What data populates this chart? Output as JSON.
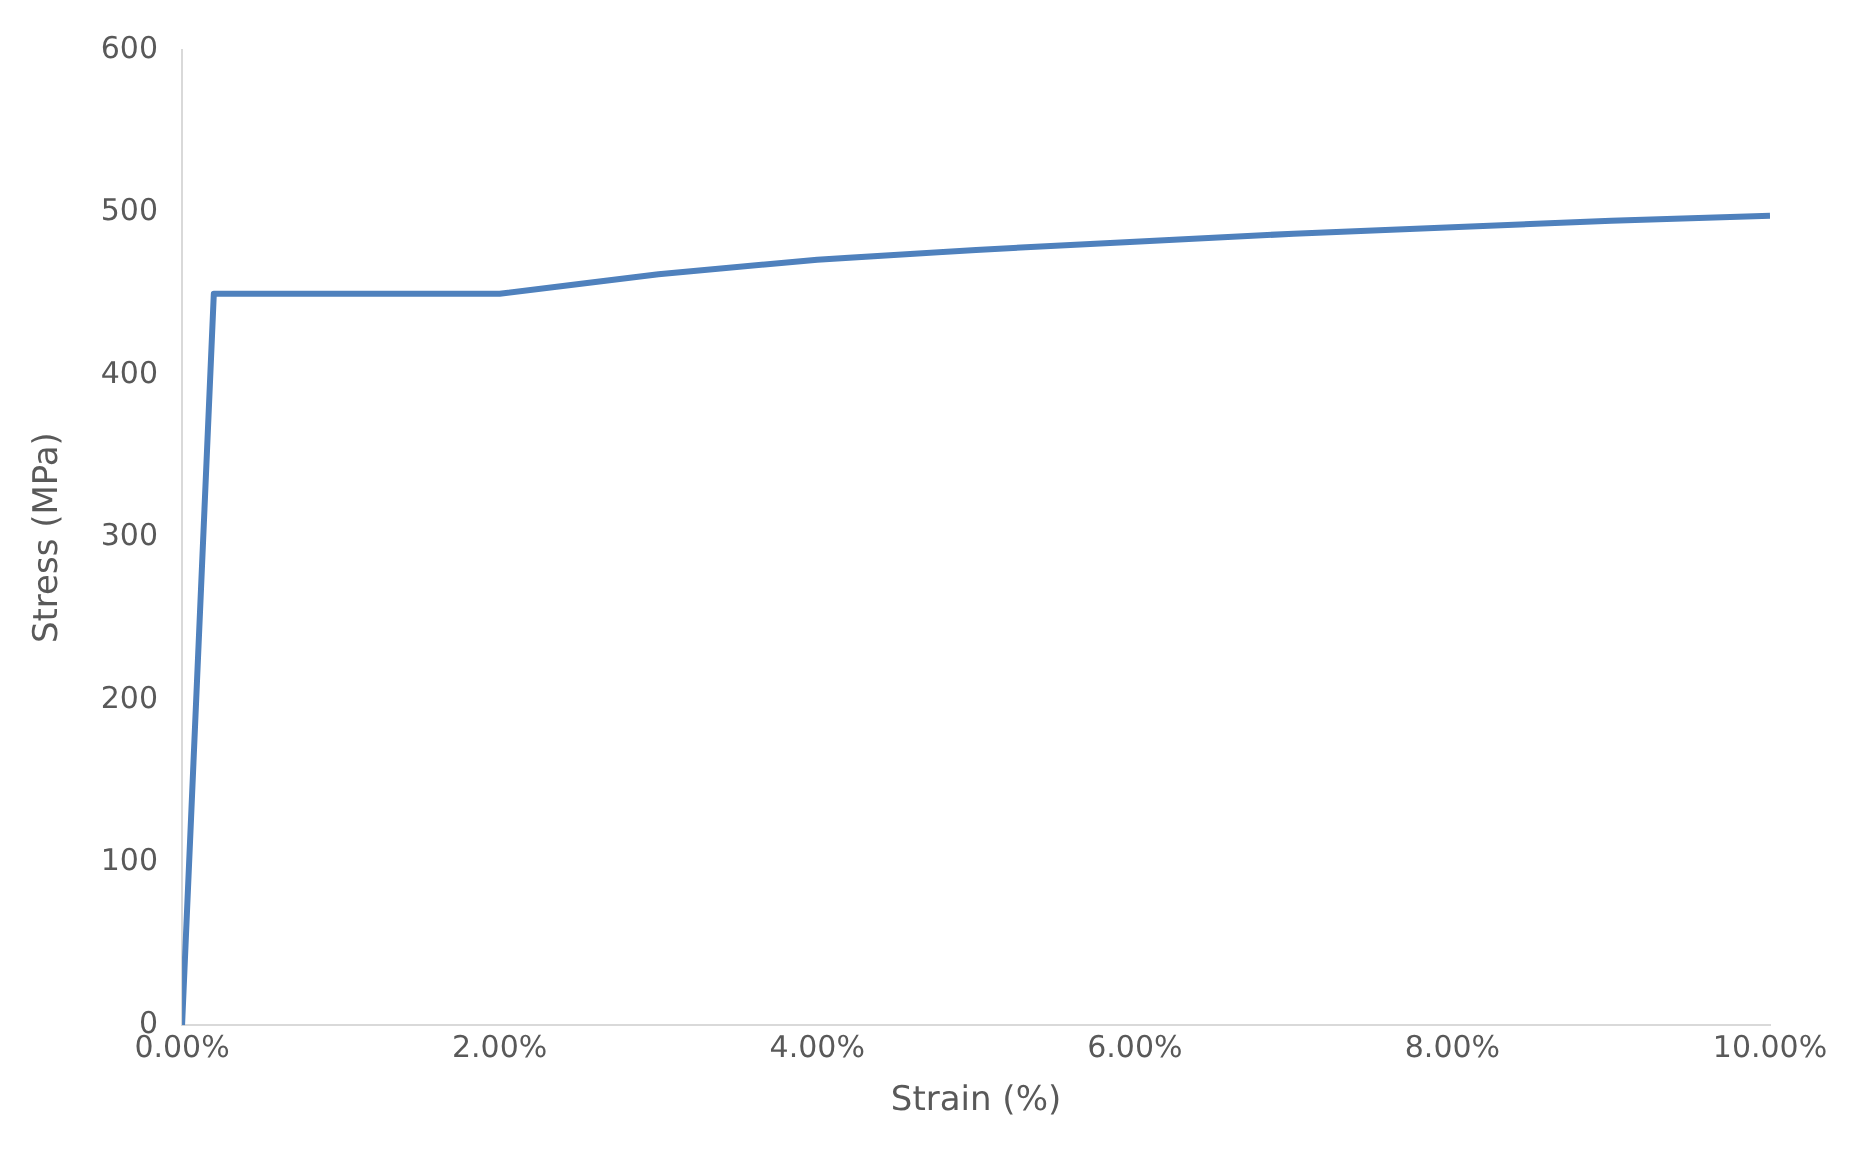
{
  "chart_data": {
    "type": "line",
    "xlabel": "Strain (%)",
    "ylabel": "Stress (MPa)",
    "x": [
      0,
      0.2,
      2.0,
      2.5,
      3.0,
      4.0,
      5.0,
      6.0,
      7.0,
      8.0,
      9.0,
      10.0
    ],
    "series": [
      {
        "color": "#4f81bd",
        "values": [
          0,
          450,
          450,
          456,
          462,
          471,
          477,
          482,
          487,
          491,
          495,
          498
        ]
      }
    ],
    "xlim": [
      0,
      10
    ],
    "xticks": [
      {
        "value": 0,
        "label": "0.00%"
      },
      {
        "value": 2,
        "label": "2.00%"
      },
      {
        "value": 4,
        "label": "4.00%"
      },
      {
        "value": 6,
        "label": "6.00%"
      },
      {
        "value": 8,
        "label": "8.00%"
      },
      {
        "value": 10,
        "label": "10.00%"
      }
    ],
    "ylim": [
      0,
      600
    ],
    "yticks": [
      0,
      100,
      200,
      300,
      400,
      500,
      600
    ],
    "grid": false,
    "legend": false,
    "marker": "none",
    "line_style": "solid"
  }
}
